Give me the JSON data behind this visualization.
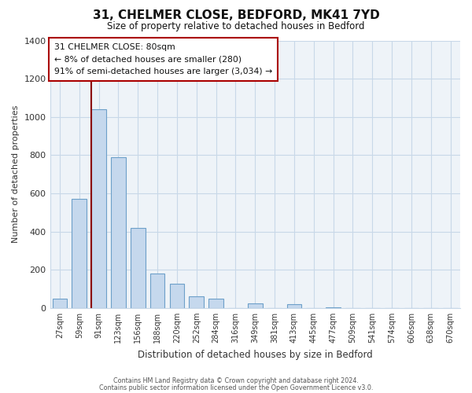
{
  "title_line1": "31, CHELMER CLOSE, BEDFORD, MK41 7YD",
  "title_line2": "Size of property relative to detached houses in Bedford",
  "xlabel": "Distribution of detached houses by size in Bedford",
  "ylabel": "Number of detached properties",
  "categories": [
    "27sqm",
    "59sqm",
    "91sqm",
    "123sqm",
    "156sqm",
    "188sqm",
    "220sqm",
    "252sqm",
    "284sqm",
    "316sqm",
    "349sqm",
    "381sqm",
    "413sqm",
    "445sqm",
    "477sqm",
    "509sqm",
    "541sqm",
    "574sqm",
    "606sqm",
    "638sqm",
    "670sqm"
  ],
  "values": [
    50,
    570,
    1040,
    790,
    420,
    180,
    125,
    62,
    50,
    0,
    25,
    0,
    20,
    0,
    5,
    0,
    0,
    0,
    0,
    0,
    0
  ],
  "bar_color": "#c5d8ed",
  "bar_edge_color": "#6da0c9",
  "vline_x_index": 2,
  "vline_color": "#8b0000",
  "ylim": [
    0,
    1400
  ],
  "yticks": [
    0,
    200,
    400,
    600,
    800,
    1000,
    1200,
    1400
  ],
  "annotation_line1": "31 CHELMER CLOSE: 80sqm",
  "annotation_line2": "← 8% of detached houses are smaller (280)",
  "annotation_line3": "91% of semi-detached houses are larger (3,034) →",
  "annotation_box_facecolor": "#ffffff",
  "annotation_box_edgecolor": "#aa0000",
  "footer_line1": "Contains HM Land Registry data © Crown copyright and database right 2024.",
  "footer_line2": "Contains public sector information licensed under the Open Government Licence v3.0.",
  "background_color": "#ffffff",
  "grid_color": "#c8d8e8",
  "plot_bg_color": "#eef3f8"
}
